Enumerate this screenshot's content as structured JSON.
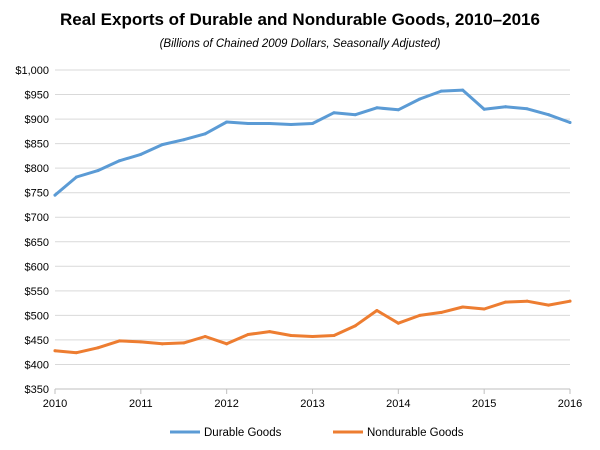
{
  "chart_data": {
    "type": "line",
    "title": "Real Exports of Durable and Nondurable Goods, 2010–2016",
    "subtitle": "(Billions of Chained 2009 Dollars, Seasonally Adjusted)",
    "xlabel": "",
    "ylabel": "",
    "xlim": [
      2010,
      2016
    ],
    "ylim": [
      350,
      1000
    ],
    "x_ticks": [
      2010,
      2011,
      2012,
      2013,
      2014,
      2015,
      2016
    ],
    "x_tick_labels": [
      "2010",
      "2011",
      "2012",
      "2013",
      "2014",
      "2015",
      "2016"
    ],
    "y_ticks": [
      350,
      400,
      450,
      500,
      550,
      600,
      650,
      700,
      750,
      800,
      850,
      900,
      950,
      1000
    ],
    "y_tick_labels": [
      "$350",
      "$400",
      "$450",
      "$500",
      "$550",
      "$600",
      "$650",
      "$700",
      "$750",
      "$800",
      "$850",
      "$900",
      "$950",
      "$1,000"
    ],
    "grid": "horizontal",
    "legend_position": "bottom",
    "x": [
      2010,
      2010.25,
      2010.5,
      2010.75,
      2011,
      2011.25,
      2011.5,
      2011.75,
      2012,
      2012.25,
      2012.5,
      2012.75,
      2013,
      2013.25,
      2013.5,
      2013.75,
      2014,
      2014.25,
      2014.5,
      2014.75,
      2015,
      2015.25,
      2015.5,
      2015.75,
      2016
    ],
    "series": [
      {
        "name": "Durable Goods",
        "color": "#5b9bd5",
        "values": [
          745,
          782,
          795,
          815,
          828,
          848,
          858,
          870,
          894,
          891,
          891,
          889,
          891,
          913,
          909,
          923,
          919,
          941,
          957,
          959,
          920,
          925,
          921,
          909,
          893
        ]
      },
      {
        "name": "Nondurable Goods",
        "color": "#ed7d31",
        "values": [
          428,
          424,
          434,
          448,
          446,
          442,
          444,
          457,
          442,
          461,
          467,
          459,
          457,
          459,
          479,
          510,
          484,
          500,
          506,
          517,
          513,
          527,
          529,
          521,
          529
        ]
      }
    ]
  }
}
